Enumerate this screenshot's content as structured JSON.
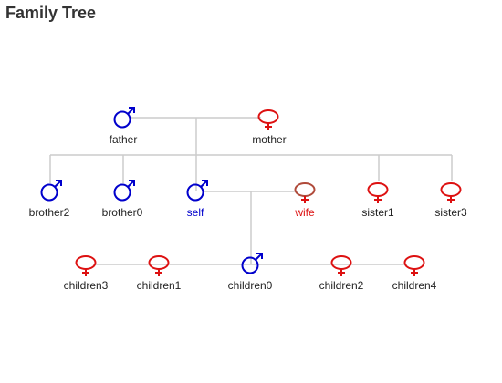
{
  "title": "Family Tree",
  "colors": {
    "male": "#0000cc",
    "female": "#dd1111",
    "spouse_wife": "#b04a3a",
    "label_default": "#222222",
    "label_self": "#0000cc",
    "label_wife": "#dd1111",
    "connector": "#cccccc"
  },
  "members": {
    "father": {
      "label": "father",
      "gender": "male",
      "icon": "male-symbol-icon"
    },
    "mother": {
      "label": "mother",
      "gender": "female",
      "icon": "female-symbol-icon"
    },
    "brother2": {
      "label": "brother2",
      "gender": "male",
      "icon": "male-symbol-icon"
    },
    "brother0": {
      "label": "brother0",
      "gender": "male",
      "icon": "male-symbol-icon"
    },
    "self": {
      "label": "self",
      "gender": "male",
      "icon": "male-symbol-icon"
    },
    "wife": {
      "label": "wife",
      "gender": "female",
      "icon": "female-symbol-icon"
    },
    "sister1": {
      "label": "sister1",
      "gender": "female",
      "icon": "female-symbol-icon"
    },
    "sister3": {
      "label": "sister3",
      "gender": "female",
      "icon": "female-symbol-icon"
    },
    "children3": {
      "label": "children3",
      "gender": "female",
      "icon": "female-symbol-icon"
    },
    "children1": {
      "label": "children1",
      "gender": "female",
      "icon": "female-symbol-icon"
    },
    "children0": {
      "label": "children0",
      "gender": "male",
      "icon": "male-symbol-icon"
    },
    "children2": {
      "label": "children2",
      "gender": "female",
      "icon": "female-symbol-icon"
    },
    "children4": {
      "label": "children4",
      "gender": "female",
      "icon": "female-symbol-icon"
    }
  }
}
